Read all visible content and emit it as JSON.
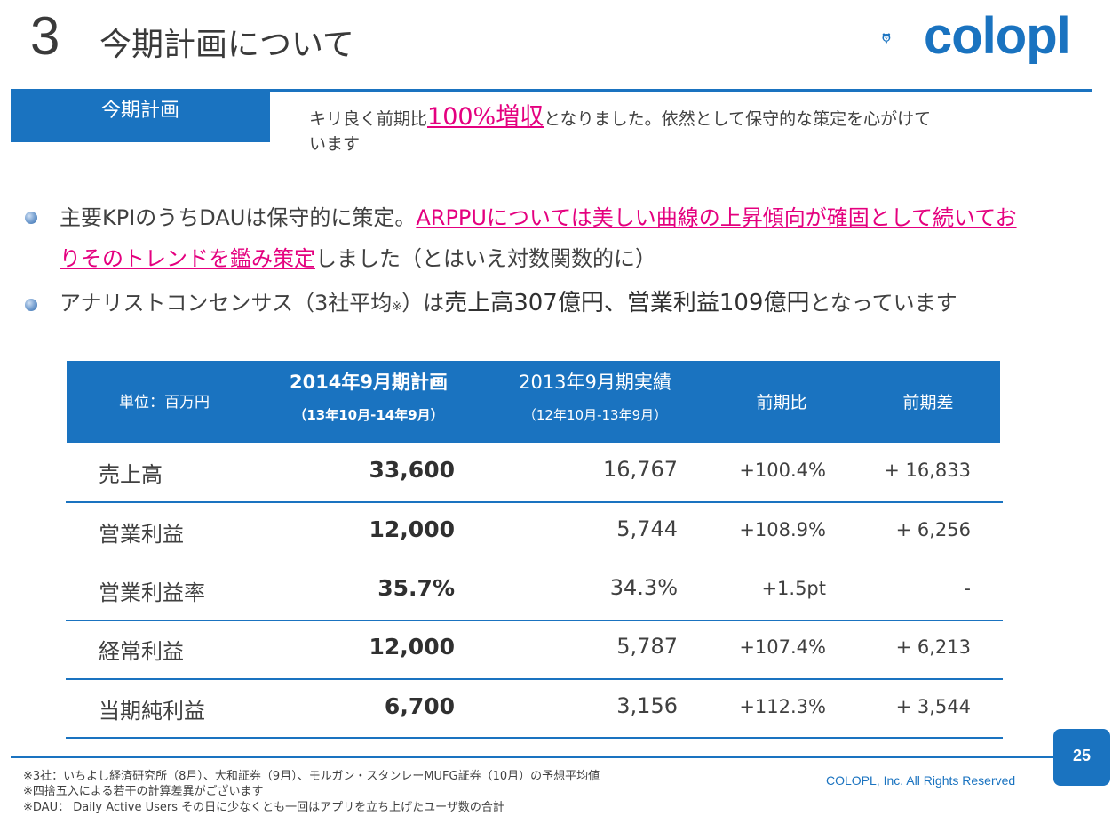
{
  "header": {
    "section_number": "3",
    "title": "今期計画について",
    "logo_text": "colopl"
  },
  "tag": {
    "label": "今期計画"
  },
  "summary": {
    "before": "キリ良く前期比",
    "highlight": "100%増収",
    "after": "となりました。依然として保守的な策定を心がけて",
    "line2": "います"
  },
  "bullets": [
    {
      "part1": "主要KPIのうちDAUは保守的に策定。",
      "pink": "ARPPUについては美しい曲線の上昇傾向が確固として続いてお",
      "pink2": "りそのトレンドを鑑み策定",
      "part2": "しました（とはいえ対数関数的に）"
    },
    {
      "part1": "アナリストコンセンサス（3社平均",
      "note_mark": "※",
      "part2": "）は",
      "big1": "売上高307億円、営業利益109億円",
      "part3": "となっています"
    }
  ],
  "table": {
    "headers": {
      "unit": "単位：百万円",
      "plan_title": "2014年9月期計画",
      "plan_period": "（13年10月-14年9月）",
      "actual_title": "2013年9月期実績",
      "actual_period": "（12年10月-13年9月）",
      "yoy_ratio": "前期比",
      "yoy_diff": "前期差"
    },
    "rows": [
      {
        "label": "売上高",
        "plan": "33,600",
        "actual": "16,767",
        "ratio": "+100.4%",
        "diff": "+ 16,833"
      },
      {
        "label": "営業利益",
        "plan": "12,000",
        "actual": "5,744",
        "ratio": "+108.9%",
        "diff": "+ 6,256"
      },
      {
        "label": "営業利益率",
        "plan": "35.7%",
        "actual": "34.3%",
        "ratio": "+1.5pt",
        "diff": "-"
      },
      {
        "label": "経常利益",
        "plan": "12,000",
        "actual": "5,787",
        "ratio": "+107.4%",
        "diff": "+ 6,213"
      },
      {
        "label": "当期純利益",
        "plan": "6,700",
        "actual": "3,156",
        "ratio": "+112.3%",
        "diff": "+ 3,544"
      }
    ]
  },
  "footer": {
    "page_number": "25",
    "copyright": "COLOPL, Inc. All Rights Reserved",
    "notes": [
      "※3社：いちよし経済研究所（8月）、大和証券（9月）、モルガン・スタンレーMUFG証券（10月）の予想平均値",
      "※四捨五入による若干の計算差異がございます",
      "※DAU： Daily Active Users その日に少なくとも一回はアプリを立ち上げたユーザ数の合計"
    ]
  },
  "colors": {
    "brand_blue": "#1a73c0",
    "highlight_pink": "#e4007f"
  }
}
